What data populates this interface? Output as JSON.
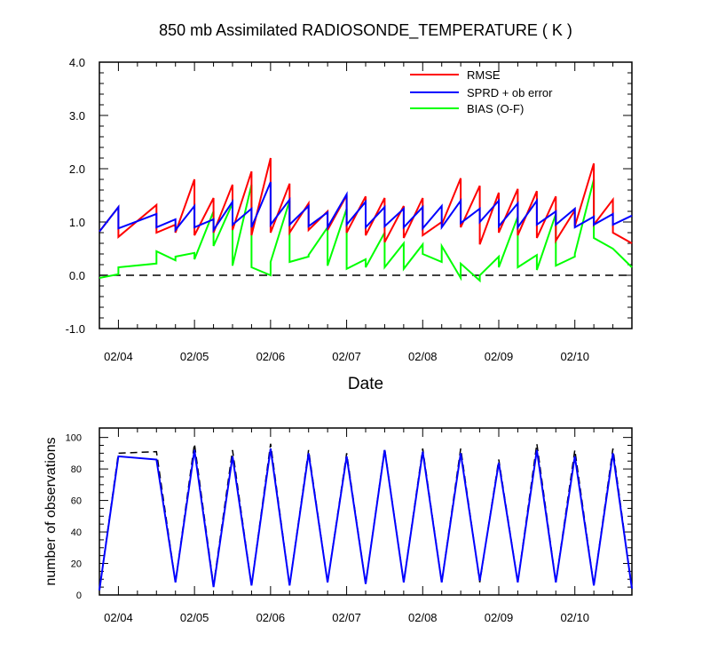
{
  "figure_title": "850 mb Assimilated RADIOSONDE_TEMPERATURE ( K )",
  "colors": {
    "rmse": "#ff0000",
    "sprd": "#0000ff",
    "bias": "#00ff00",
    "zero_line": "#000000",
    "obs_possible": "#000000",
    "obs_used": "#0000ff"
  },
  "chart_data": [
    {
      "type": "line",
      "title": "850 mb Assimilated RADIOSONDE_TEMPERATURE ( K )",
      "xlabel": "Date",
      "ylabel": "",
      "x_tick_labels": [
        "02/04",
        "02/05",
        "02/06",
        "02/07",
        "02/08",
        "02/09",
        "02/10"
      ],
      "x_tick_positions": [
        0.75,
        1.75,
        2.75,
        3.75,
        4.75,
        5.75,
        6.75
      ],
      "y_tick_labels": [
        "-1.0",
        "0.0",
        "1.0",
        "2.0",
        "3.0",
        "4.0"
      ],
      "xlim": [
        0.5,
        7.5
      ],
      "ylim": [
        -1,
        4
      ],
      "grid": false,
      "legend_position": "top-right",
      "reference_line": {
        "y": 0,
        "style": "dashed"
      },
      "x": [
        0.5,
        0.75,
        0.75,
        1.25,
        1.25,
        1.5,
        1.5,
        1.75,
        1.75,
        2.0,
        2.0,
        2.25,
        2.25,
        2.5,
        2.5,
        2.75,
        2.75,
        3.0,
        3.0,
        3.25,
        3.25,
        3.5,
        3.5,
        3.75,
        3.75,
        4.0,
        4.0,
        4.25,
        4.25,
        4.5,
        4.5,
        4.75,
        4.75,
        5.0,
        5.0,
        5.25,
        5.25,
        5.5,
        5.5,
        5.75,
        5.75,
        6.0,
        6.0,
        6.25,
        6.25,
        6.5,
        6.5,
        6.75,
        6.75,
        7.0,
        7.0,
        7.25,
        7.25,
        7.5
      ],
      "series": [
        {
          "name": "RMSE",
          "color": "#ff0000",
          "values": [
            0.82,
            1.28,
            0.72,
            1.32,
            0.8,
            0.95,
            0.8,
            1.8,
            0.75,
            1.45,
            0.8,
            1.7,
            0.85,
            1.95,
            0.75,
            2.2,
            0.8,
            1.72,
            0.8,
            1.35,
            0.85,
            1.2,
            0.85,
            1.5,
            0.8,
            1.48,
            0.75,
            1.45,
            0.62,
            1.3,
            0.7,
            1.45,
            0.75,
            1.0,
            0.95,
            1.82,
            0.9,
            1.68,
            0.58,
            1.55,
            0.8,
            1.62,
            0.75,
            1.58,
            0.7,
            1.48,
            0.65,
            1.22,
            0.92,
            2.1,
            0.95,
            1.42,
            0.8,
            0.6
          ]
        },
        {
          "name": "SPRD + ob error",
          "color": "#0000ff",
          "values": [
            0.82,
            1.28,
            0.88,
            1.15,
            0.9,
            1.05,
            0.85,
            1.3,
            0.9,
            1.05,
            0.85,
            1.38,
            0.95,
            1.25,
            0.9,
            1.75,
            0.95,
            1.42,
            0.95,
            1.3,
            0.92,
            1.18,
            0.9,
            1.52,
            0.95,
            1.38,
            0.9,
            1.28,
            0.92,
            1.25,
            0.9,
            1.28,
            0.88,
            1.3,
            0.9,
            1.4,
            0.98,
            1.25,
            1.0,
            1.4,
            0.92,
            1.35,
            0.9,
            1.4,
            0.95,
            1.2,
            0.95,
            1.25,
            0.9,
            1.1,
            0.95,
            1.15,
            0.95,
            1.12
          ]
        },
        {
          "name": "BIAS (O-F)",
          "color": "#00ff00",
          "values": [
            -0.05,
            0.02,
            0.15,
            0.22,
            0.45,
            0.28,
            0.35,
            0.42,
            0.3,
            1.2,
            0.55,
            1.35,
            0.18,
            1.7,
            0.15,
            0.0,
            0.25,
            1.4,
            0.25,
            0.35,
            0.38,
            0.9,
            0.18,
            1.25,
            0.12,
            0.3,
            0.15,
            0.8,
            0.15,
            0.6,
            0.12,
            0.58,
            0.4,
            0.25,
            0.55,
            -0.05,
            0.22,
            -0.1,
            0.0,
            0.35,
            0.15,
            1.1,
            0.15,
            0.38,
            0.1,
            1.15,
            0.18,
            0.35,
            0.4,
            1.8,
            0.7,
            0.5,
            0.5,
            0.15
          ]
        }
      ]
    },
    {
      "type": "line",
      "title": "",
      "xlabel": "",
      "ylabel": "number of observations",
      "x_tick_labels": [
        "02/04",
        "02/05",
        "02/06",
        "02/07",
        "02/08",
        "02/09",
        "02/10"
      ],
      "x_tick_positions": [
        0.75,
        1.75,
        2.75,
        3.75,
        4.75,
        5.75,
        6.75
      ],
      "y_tick_labels": [
        "0",
        "20",
        "40",
        "60",
        "80",
        "100"
      ],
      "xlim": [
        0.5,
        7.5
      ],
      "ylim": [
        0,
        106
      ],
      "grid": false,
      "x": [
        0.5,
        0.75,
        1.25,
        1.5,
        1.75,
        2.0,
        2.25,
        2.5,
        2.75,
        3.0,
        3.25,
        3.5,
        3.75,
        4.0,
        4.25,
        4.5,
        4.75,
        5.0,
        5.25,
        5.5,
        5.75,
        6.0,
        6.25,
        6.5,
        6.75,
        7.0,
        7.25,
        7.5
      ],
      "series": [
        {
          "style": "dashed",
          "color": "#000000",
          "values": [
            3,
            90,
            91,
            8,
            96,
            6,
            92,
            6,
            96,
            6,
            92,
            8,
            90,
            7,
            93,
            8,
            93,
            8,
            93,
            8,
            86,
            8,
            96,
            8,
            92,
            6,
            93,
            4
          ]
        },
        {
          "style": "solid",
          "color": "#0000ff",
          "values": [
            3,
            88,
            86,
            8,
            92,
            5,
            88,
            6,
            93,
            6,
            90,
            8,
            88,
            7,
            92,
            8,
            91,
            8,
            90,
            9,
            84,
            8,
            92,
            8,
            88,
            6,
            90,
            4
          ]
        }
      ]
    }
  ]
}
